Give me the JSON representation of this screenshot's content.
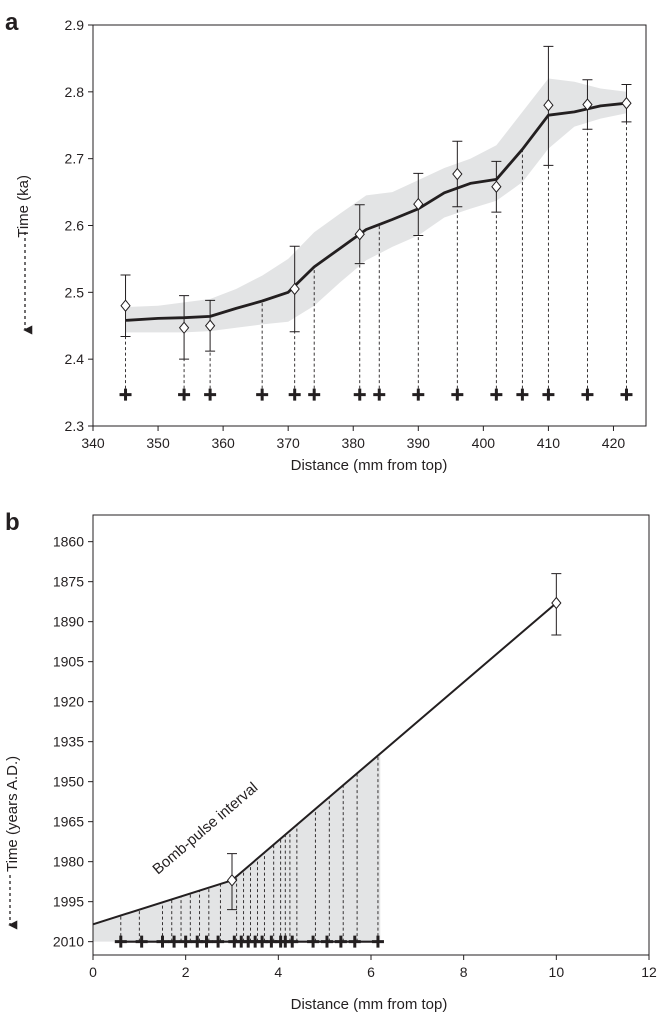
{
  "chart_data": [
    {
      "panel_label": "a",
      "type": "line",
      "xlabel": "Distance (mm from top)",
      "ylabel": "Time (ka)",
      "xlim": [
        340,
        425
      ],
      "ylim": [
        2.3,
        2.9
      ],
      "y_inverted": true,
      "xticks": [
        "340",
        "350",
        "360",
        "370",
        "380",
        "390",
        "400",
        "410",
        "420"
      ],
      "yticks": [
        "2.3",
        "2.4",
        "2.5",
        "2.6",
        "2.7",
        "2.8",
        "2.9"
      ],
      "age_model": {
        "x": [
          345,
          350,
          354,
          358,
          362,
          366,
          370,
          374,
          378,
          382,
          386,
          390,
          394,
          398,
          402,
          406,
          410,
          414,
          418,
          422
        ],
        "y": [
          2.458,
          2.461,
          2.462,
          2.464,
          2.476,
          2.487,
          2.5,
          2.538,
          2.566,
          2.594,
          2.609,
          2.625,
          2.649,
          2.663,
          2.669,
          2.714,
          2.765,
          2.77,
          2.779,
          2.783
        ],
        "y_lower": [
          2.44,
          2.44,
          2.44,
          2.442,
          2.447,
          2.452,
          2.456,
          2.48,
          2.515,
          2.548,
          2.568,
          2.585,
          2.612,
          2.625,
          2.637,
          2.665,
          2.715,
          2.748,
          2.76,
          2.768
        ],
        "y_upper": [
          2.478,
          2.48,
          2.485,
          2.49,
          2.505,
          2.525,
          2.55,
          2.59,
          2.618,
          2.645,
          2.65,
          2.668,
          2.686,
          2.7,
          2.72,
          2.77,
          2.82,
          2.815,
          2.805,
          2.8
        ]
      },
      "dated_samples": {
        "x": [
          345,
          354,
          358,
          371,
          381,
          390,
          396,
          402,
          410,
          416,
          422
        ],
        "y": [
          2.48,
          2.447,
          2.45,
          2.505,
          2.587,
          2.632,
          2.677,
          2.658,
          2.78,
          2.781,
          2.783
        ],
        "err_low": [
          2.434,
          2.4,
          2.412,
          2.441,
          2.543,
          2.585,
          2.628,
          2.62,
          2.69,
          2.744,
          2.755
        ],
        "err_high": [
          2.526,
          2.495,
          2.488,
          2.569,
          2.631,
          2.678,
          2.726,
          2.696,
          2.868,
          2.818,
          2.811
        ]
      },
      "sample_marks": {
        "x": [
          345,
          354,
          358,
          366,
          371,
          374,
          381,
          384,
          390,
          396,
          402,
          406,
          410,
          416,
          422
        ],
        "y": 2.347
      }
    },
    {
      "panel_label": "b",
      "type": "line",
      "xlabel": "Distance (mm from top)",
      "ylabel": "Time (years A.D.)",
      "xlim": [
        0,
        12
      ],
      "ylim": [
        1850,
        2015
      ],
      "y_inverted": true,
      "xticks": [
        "0",
        "2",
        "4",
        "6",
        "8",
        "10",
        "12"
      ],
      "yticks": [
        "1860",
        "1875",
        "1890",
        "1905",
        "1920",
        "1935",
        "1950",
        "1965",
        "1980",
        "1995",
        "2010"
      ],
      "annotation": "Bomb-pulse interval",
      "age_model": {
        "x": [
          0,
          3,
          10
        ],
        "y": [
          2003.5,
          1987,
          1883
        ]
      },
      "dated_samples": {
        "x": [
          3,
          10
        ],
        "y": [
          1987,
          1883
        ],
        "err_low": [
          1998,
          1895
        ],
        "err_high": [
          1977,
          1872
        ]
      },
      "bomb_pulse_region": {
        "x_start": 0,
        "x_end": 6.2
      },
      "vertical_lines_x": [
        0.6,
        1.0,
        1.5,
        1.7,
        1.9,
        2.1,
        2.3,
        2.5,
        2.75,
        3.1,
        3.25,
        3.4,
        3.55,
        3.7,
        3.9,
        4.05,
        4.15,
        4.25,
        4.4,
        4.8,
        5.1,
        5.4,
        5.7,
        6.15
      ],
      "sample_marks": {
        "x": [
          0.6,
          1.05,
          1.5,
          1.75,
          2.0,
          2.25,
          2.45,
          2.7,
          3.05,
          3.2,
          3.35,
          3.5,
          3.65,
          3.85,
          4.05,
          4.15,
          4.3,
          4.75,
          5.05,
          5.35,
          5.65,
          6.15
        ],
        "y": 2010
      }
    }
  ]
}
